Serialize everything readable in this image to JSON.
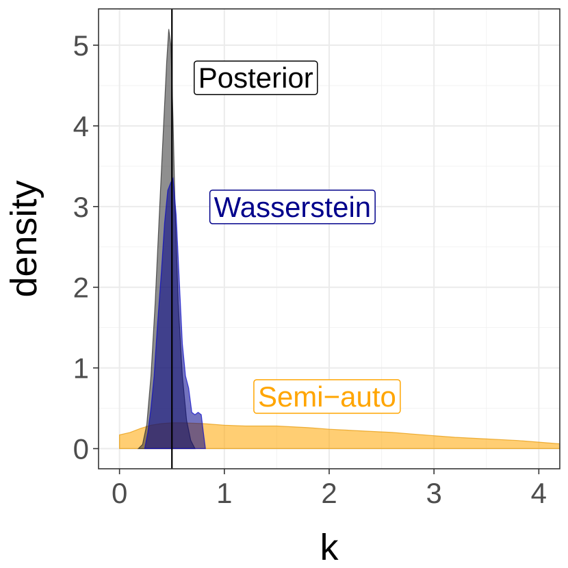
{
  "chart_data": {
    "type": "area",
    "xlabel": "k",
    "ylabel": "density",
    "xlim": [
      -0.2,
      4.2
    ],
    "ylim": [
      -0.25,
      5.45
    ],
    "x_ticks": [
      0,
      1,
      2,
      3,
      4
    ],
    "y_ticks": [
      0,
      1,
      2,
      3,
      4,
      5
    ],
    "x_tick_labels": [
      "0",
      "1",
      "2",
      "3",
      "4"
    ],
    "y_tick_labels": [
      "0",
      "1",
      "2",
      "3",
      "4",
      "5"
    ],
    "grid": true,
    "vline": 0.5,
    "series": [
      {
        "name": "Semi−auto",
        "fill": "#FFA500",
        "stroke": "#E69500",
        "label_color": "#FFA500",
        "label_x": 1.98,
        "label_y": 0.65,
        "points": [
          [
            0.0,
            0.17
          ],
          [
            0.1,
            0.2
          ],
          [
            0.2,
            0.25
          ],
          [
            0.3,
            0.29
          ],
          [
            0.4,
            0.31
          ],
          [
            0.5,
            0.32
          ],
          [
            0.6,
            0.32
          ],
          [
            0.8,
            0.31
          ],
          [
            1.0,
            0.29
          ],
          [
            1.2,
            0.28
          ],
          [
            1.5,
            0.28
          ],
          [
            1.8,
            0.26
          ],
          [
            2.0,
            0.24
          ],
          [
            2.3,
            0.22
          ],
          [
            2.6,
            0.2
          ],
          [
            2.8,
            0.18
          ],
          [
            3.0,
            0.16
          ],
          [
            3.2,
            0.14
          ],
          [
            3.5,
            0.12
          ],
          [
            3.8,
            0.1
          ],
          [
            4.0,
            0.08
          ],
          [
            4.2,
            0.06
          ]
        ]
      },
      {
        "name": "Posterior",
        "fill": "#333333",
        "stroke": "#222222",
        "label_color": "#000000",
        "label_x": 1.3,
        "label_y": 4.6,
        "points": [
          [
            0.18,
            0.0
          ],
          [
            0.22,
            0.05
          ],
          [
            0.26,
            0.3
          ],
          [
            0.3,
            0.9
          ],
          [
            0.34,
            1.8
          ],
          [
            0.38,
            2.9
          ],
          [
            0.42,
            4.0
          ],
          [
            0.45,
            4.8
          ],
          [
            0.47,
            5.2
          ],
          [
            0.49,
            5.0
          ],
          [
            0.51,
            4.1
          ],
          [
            0.53,
            3.0
          ],
          [
            0.56,
            1.8
          ],
          [
            0.6,
            0.9
          ],
          [
            0.64,
            0.35
          ],
          [
            0.68,
            0.1
          ],
          [
            0.72,
            0.0
          ]
        ]
      },
      {
        "name": "Wasserstein",
        "fill": "#00008B",
        "stroke": "#0000CD",
        "label_color": "#00008B",
        "label_x": 1.65,
        "label_y": 3.0,
        "points": [
          [
            0.24,
            0.0
          ],
          [
            0.27,
            0.2
          ],
          [
            0.3,
            0.5
          ],
          [
            0.33,
            0.9
          ],
          [
            0.36,
            1.5
          ],
          [
            0.4,
            2.2
          ],
          [
            0.43,
            2.8
          ],
          [
            0.46,
            3.2
          ],
          [
            0.49,
            3.3
          ],
          [
            0.51,
            3.35
          ],
          [
            0.54,
            2.9
          ],
          [
            0.57,
            2.1
          ],
          [
            0.6,
            1.3
          ],
          [
            0.63,
            0.9
          ],
          [
            0.66,
            0.75
          ],
          [
            0.69,
            0.45
          ],
          [
            0.72,
            0.42
          ],
          [
            0.75,
            0.45
          ],
          [
            0.78,
            0.42
          ],
          [
            0.8,
            0.2
          ],
          [
            0.82,
            0.0
          ]
        ]
      }
    ]
  }
}
